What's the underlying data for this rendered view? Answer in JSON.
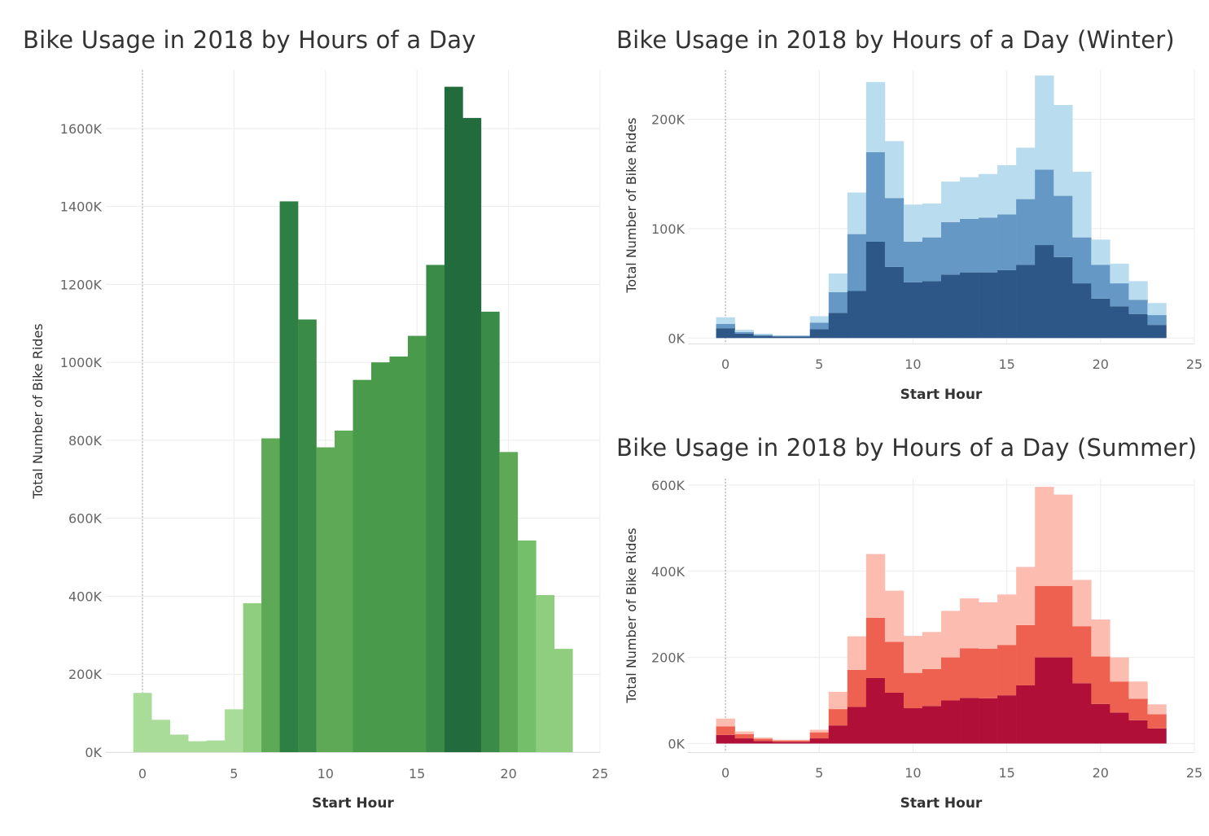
{
  "chart_data": [
    {
      "id": "all",
      "type": "bar",
      "title": "Bike Usage in 2018 by Hours of a Day",
      "xlabel": "Start Hour",
      "ylabel": "Total Number of Bike Rides",
      "x": [
        0,
        1,
        2,
        3,
        4,
        5,
        6,
        7,
        8,
        9,
        10,
        11,
        12,
        13,
        14,
        15,
        16,
        17,
        18,
        19,
        20,
        21,
        22,
        23
      ],
      "values": [
        152000,
        83000,
        45000,
        28000,
        30000,
        110000,
        382000,
        805000,
        1413000,
        1110000,
        782000,
        825000,
        955000,
        1000000,
        1015000,
        1068000,
        1250000,
        1707000,
        1627000,
        1130000,
        770000,
        543000,
        403000,
        265000
      ],
      "xlim": [
        -2,
        25
      ],
      "ylim": [
        0,
        1750000
      ],
      "xticks": [
        "0",
        "5",
        "10",
        "15",
        "20",
        "25"
      ],
      "yticks": [
        "0K",
        "200K",
        "400K",
        "600K",
        "800K",
        "1000K",
        "1200K",
        "1400K",
        "1600K"
      ],
      "colors": [
        "#a8dc98",
        "#8fce7f",
        "#74bf69",
        "#5ea955",
        "#4a9a4c",
        "#3b8b48",
        "#2e7f44",
        "#226b3c"
      ],
      "grid": true,
      "legend": "none"
    },
    {
      "id": "winter",
      "type": "bar",
      "stacked": true,
      "title": "Bike Usage in 2018 by Hours of a Day (Winter)",
      "xlabel": "Start Hour",
      "ylabel": "Total Number of Bike Rides",
      "x": [
        0,
        1,
        2,
        3,
        4,
        5,
        6,
        7,
        8,
        9,
        10,
        11,
        12,
        13,
        14,
        15,
        16,
        17,
        18,
        19,
        20,
        21,
        22,
        23
      ],
      "series": [
        {
          "values": [
            9000,
            4000,
            2000,
            1500,
            1500,
            8000,
            23000,
            43000,
            88000,
            65000,
            51000,
            52000,
            58000,
            60000,
            60000,
            62000,
            67000,
            85000,
            74000,
            50000,
            36000,
            29000,
            22000,
            12000
          ],
          "color": "#2c5786"
        },
        {
          "values": [
            4000,
            1500,
            1000,
            500,
            500,
            6000,
            19000,
            52000,
            82000,
            63000,
            37000,
            40000,
            48000,
            49000,
            50000,
            51000,
            60000,
            69000,
            56000,
            42000,
            31000,
            21000,
            13000,
            9000
          ],
          "color": "#6598c4"
        },
        {
          "values": [
            6000,
            2000,
            1000,
            500,
            500,
            6000,
            17000,
            38000,
            64000,
            52000,
            34000,
            31000,
            37000,
            38000,
            40000,
            45000,
            47000,
            86000,
            83000,
            60000,
            23000,
            18000,
            17000,
            11000
          ],
          "color": "#b9dcef"
        }
      ],
      "xlim": [
        -2,
        25
      ],
      "ylim": [
        -5000,
        245000
      ],
      "xticks": [
        "0",
        "5",
        "10",
        "15",
        "20",
        "25"
      ],
      "yticks": [
        "0K",
        "100K",
        "200K"
      ],
      "grid": true,
      "legend": "none"
    },
    {
      "id": "summer",
      "type": "bar",
      "stacked": true,
      "title": "Bike Usage in 2018 by Hours of a Day (Summer)",
      "xlabel": "Start Hour",
      "ylabel": "Total Number of Bike Rides",
      "x": [
        0,
        1,
        2,
        3,
        4,
        5,
        6,
        7,
        8,
        9,
        10,
        11,
        12,
        13,
        14,
        15,
        16,
        17,
        18,
        19,
        20,
        21,
        22,
        23
      ],
      "series": [
        {
          "values": [
            20000,
            12000,
            6000,
            4000,
            4000,
            12000,
            42000,
            85000,
            152000,
            118000,
            82000,
            87000,
            100000,
            106000,
            105000,
            112000,
            135000,
            200000,
            200000,
            140000,
            92000,
            72000,
            54000,
            35000
          ],
          "color": "#b01038"
        },
        {
          "values": [
            20000,
            10000,
            5000,
            3000,
            3000,
            14000,
            38000,
            86000,
            140000,
            118000,
            82000,
            86000,
            100000,
            115000,
            115000,
            117000,
            140000,
            166000,
            166000,
            132000,
            110000,
            72000,
            50000,
            33000
          ],
          "color": "#ee6150"
        },
        {
          "values": [
            18000,
            6000,
            3000,
            2000,
            2000,
            6000,
            40000,
            78000,
            148000,
            119000,
            86000,
            86000,
            108000,
            116000,
            108000,
            117000,
            135000,
            230000,
            212000,
            108000,
            86000,
            56000,
            40000,
            23000
          ],
          "color": "#fcbdb0"
        }
      ],
      "xlim": [
        -2,
        25
      ],
      "ylim": [
        -20000,
        615000
      ],
      "xticks": [
        "0",
        "5",
        "10",
        "15",
        "20",
        "25"
      ],
      "yticks": [
        "0K",
        "200K",
        "400K",
        "600K"
      ],
      "grid": true,
      "legend": "none"
    }
  ]
}
